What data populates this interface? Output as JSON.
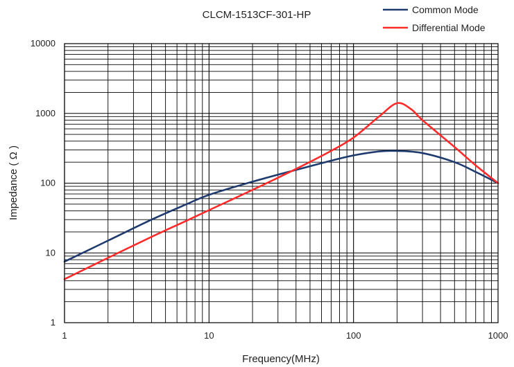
{
  "chart_data": {
    "type": "line",
    "title": "CLCM-1513CF-301-HP",
    "xlabel": "Frequency(MHz)",
    "ylabel": "Impedance ( Ω )",
    "x_scale": "log",
    "y_scale": "log",
    "xlim": [
      1,
      1000
    ],
    "ylim": [
      1,
      10000
    ],
    "x_ticks": [
      1,
      10,
      100,
      1000
    ],
    "x_tick_labels": [
      "1",
      "10",
      "100",
      "1000"
    ],
    "y_ticks": [
      1,
      10,
      100,
      1000,
      10000
    ],
    "y_tick_labels": [
      "1",
      "10",
      "100",
      "1000",
      "10000"
    ],
    "grid": true,
    "legend_position": "top-right",
    "series": [
      {
        "name": "Common Mode",
        "color": "#1f3a6e",
        "points": [
          [
            1,
            7.5
          ],
          [
            2,
            15
          ],
          [
            4,
            30
          ],
          [
            7,
            50
          ],
          [
            10,
            68
          ],
          [
            20,
            105
          ],
          [
            40,
            155
          ],
          [
            70,
            210
          ],
          [
            100,
            250
          ],
          [
            150,
            285
          ],
          [
            200,
            290
          ],
          [
            300,
            270
          ],
          [
            500,
            200
          ],
          [
            700,
            145
          ],
          [
            1000,
            100
          ]
        ]
      },
      {
        "name": "Differential Mode",
        "color": "#ff2a2a",
        "points": [
          [
            1,
            4.2
          ],
          [
            2,
            8.5
          ],
          [
            4,
            17
          ],
          [
            7,
            29
          ],
          [
            10,
            41
          ],
          [
            20,
            80
          ],
          [
            40,
            160
          ],
          [
            70,
            290
          ],
          [
            100,
            450
          ],
          [
            150,
            900
          ],
          [
            200,
            1400
          ],
          [
            250,
            1150
          ],
          [
            300,
            800
          ],
          [
            500,
            330
          ],
          [
            700,
            180
          ],
          [
            1000,
            100
          ]
        ]
      }
    ]
  }
}
